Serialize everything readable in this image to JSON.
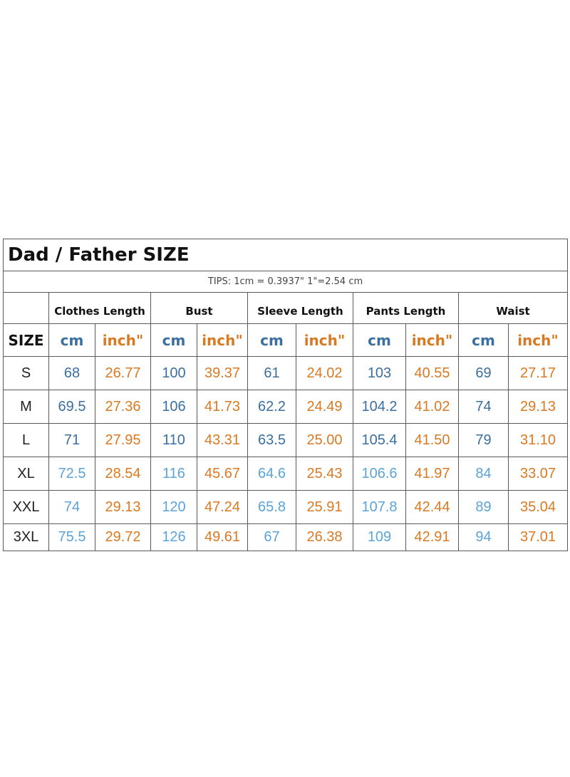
{
  "title": "Dad / Father  SIZE",
  "tips": "TIPS: 1cm = 0.3937\"   1\"=2.54 cm",
  "groups": [
    "Clothes Length",
    "Bust",
    "Sleeve Length",
    "Pants Length",
    "Waist"
  ],
  "units": {
    "size": "SIZE",
    "cm": "cm",
    "inch": "inch\""
  },
  "colors": {
    "cm": "#3a6fa0",
    "cm_light": "#5ba3d8",
    "inch": "#d97a22",
    "border": "#5a5a5a"
  },
  "rows": [
    {
      "size": "S",
      "values": [
        "68",
        "26.77",
        "100",
        "39.37",
        "61",
        "24.02",
        "103",
        "40.55",
        "69",
        "27.17"
      ]
    },
    {
      "size": "M",
      "values": [
        "69.5",
        "27.36",
        "106",
        "41.73",
        "62.2",
        "24.49",
        "104.2",
        "41.02",
        "74",
        "29.13"
      ]
    },
    {
      "size": "L",
      "values": [
        "71",
        "27.95",
        "110",
        "43.31",
        "63.5",
        "25.00",
        "105.4",
        "41.50",
        "79",
        "31.10"
      ]
    },
    {
      "size": "XL",
      "values": [
        "72.5",
        "28.54",
        "116",
        "45.67",
        "64.6",
        "25.43",
        "106.6",
        "41.97",
        "84",
        "33.07"
      ]
    },
    {
      "size": "XXL",
      "values": [
        "74",
        "29.13",
        "120",
        "47.24",
        "65.8",
        "25.91",
        "107.8",
        "42.44",
        "89",
        "35.04"
      ]
    },
    {
      "size": "3XL",
      "values": [
        "75.5",
        "29.72",
        "126",
        "49.61",
        "67",
        "26.38",
        "109",
        "42.91",
        "94",
        "37.01"
      ]
    }
  ]
}
